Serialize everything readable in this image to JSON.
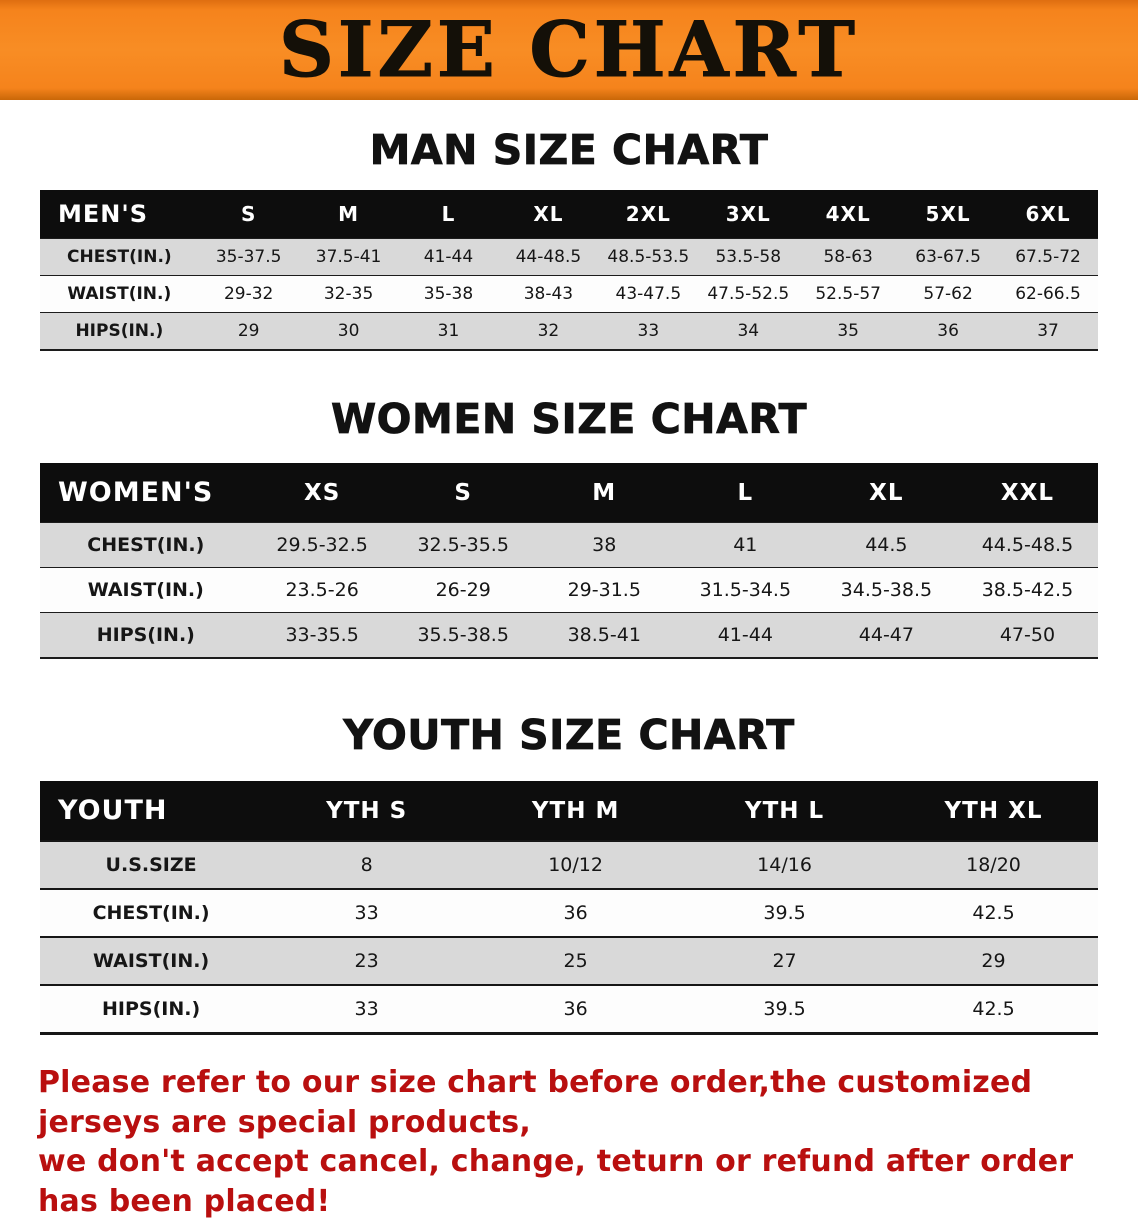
{
  "banner": {
    "title": "SIZE CHART",
    "bg_color": "#F5831C",
    "text_color": "#141008"
  },
  "sections": [
    {
      "id": "men",
      "heading": "MAN SIZE CHART",
      "table": {
        "header": [
          "MEN'S",
          "S",
          "M",
          "L",
          "XL",
          "2XL",
          "3XL",
          "4XL",
          "5XL",
          "6XL"
        ],
        "rows": [
          {
            "label": "CHEST(IN.)",
            "values": [
              "35-37.5",
              "37.5-41",
              "41-44",
              "44-48.5",
              "48.5-53.5",
              "53.5-58",
              "58-63",
              "63-67.5",
              "67.5-72"
            ]
          },
          {
            "label": "WAIST(IN.)",
            "values": [
              "29-32",
              "32-35",
              "35-38",
              "38-43",
              "43-47.5",
              "47.5-52.5",
              "52.5-57",
              "57-62",
              "62-66.5"
            ]
          },
          {
            "label": "HIPS(IN.)",
            "values": [
              "29",
              "30",
              "31",
              "32",
              "33",
              "34",
              "35",
              "36",
              "37"
            ]
          }
        ]
      }
    },
    {
      "id": "women",
      "heading": "WOMEN SIZE CHART",
      "table": {
        "header": [
          "WOMEN'S",
          "XS",
          "S",
          "M",
          "L",
          "XL",
          "XXL"
        ],
        "rows": [
          {
            "label": "CHEST(IN.)",
            "values": [
              "29.5-32.5",
              "32.5-35.5",
              "38",
              "41",
              "44.5",
              "44.5-48.5"
            ]
          },
          {
            "label": "WAIST(IN.)",
            "values": [
              "23.5-26",
              "26-29",
              "29-31.5",
              "31.5-34.5",
              "34.5-38.5",
              "38.5-42.5"
            ]
          },
          {
            "label": "HIPS(IN.)",
            "values": [
              "33-35.5",
              "35.5-38.5",
              "38.5-41",
              "41-44",
              "44-47",
              "47-50"
            ]
          }
        ]
      }
    },
    {
      "id": "youth",
      "heading": "YOUTH SIZE CHART",
      "table": {
        "header": [
          "YOUTH",
          "YTH S",
          "YTH M",
          "YTH L",
          "YTH XL"
        ],
        "rows": [
          {
            "label": "U.S.SIZE",
            "values": [
              "8",
              "10/12",
              "14/16",
              "18/20"
            ]
          },
          {
            "label": "CHEST(IN.)",
            "values": [
              "33",
              "36",
              "39.5",
              "42.5"
            ]
          },
          {
            "label": "WAIST(IN.)",
            "values": [
              "23",
              "25",
              "27",
              "29"
            ]
          },
          {
            "label": "HIPS(IN.)",
            "values": [
              "33",
              "36",
              "39.5",
              "42.5"
            ]
          }
        ]
      }
    }
  ],
  "footer": {
    "line1": "Please refer to our size chart before order,the customized jerseys are special products,",
    "line2": "we don't accept cancel, change, teturn or refund after order has been placed!",
    "text_color": "#B90F0F"
  }
}
